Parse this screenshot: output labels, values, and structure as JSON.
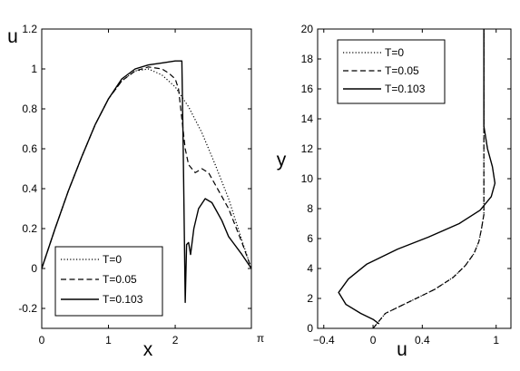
{
  "chart_data": [
    {
      "type": "line",
      "xlabel": "x",
      "ylabel": "u",
      "xlim": [
        0,
        3.14159
      ],
      "ylim": [
        -0.3,
        1.2
      ],
      "xticks": [
        {
          "v": 0,
          "label": "0"
        },
        {
          "v": 1,
          "label": "1"
        },
        {
          "v": 2,
          "label": "2"
        },
        {
          "v": 3.14159,
          "label": "π"
        }
      ],
      "yticks": [
        {
          "v": -0.2,
          "label": "-0.2"
        },
        {
          "v": 0,
          "label": "0"
        },
        {
          "v": 0.2,
          "label": "0.2"
        },
        {
          "v": 0.4,
          "label": "0.4"
        },
        {
          "v": 0.6,
          "label": "0.6"
        },
        {
          "v": 0.8,
          "label": "0.8"
        },
        {
          "v": 1,
          "label": "1"
        },
        {
          "v": 1.2,
          "label": "1.2"
        }
      ],
      "legend": "bottom-left",
      "grid": false,
      "series": [
        {
          "name": "T=0",
          "style": "dotted",
          "x": [
            0,
            0.2,
            0.4,
            0.6,
            0.8,
            1.0,
            1.2,
            1.4,
            1.6,
            1.8,
            2.0,
            2.2,
            2.4,
            2.6,
            2.8,
            3.0,
            3.14159
          ],
          "y": [
            0,
            0.2,
            0.39,
            0.56,
            0.72,
            0.85,
            0.94,
            0.99,
            1.0,
            0.97,
            0.91,
            0.81,
            0.68,
            0.52,
            0.35,
            0.14,
            0
          ]
        },
        {
          "name": "T=0.05",
          "style": "dashed",
          "x": [
            0,
            0.2,
            0.4,
            0.6,
            0.8,
            1.0,
            1.2,
            1.4,
            1.6,
            1.8,
            1.9,
            2.0,
            2.05,
            2.1,
            2.15,
            2.2,
            2.3,
            2.4,
            2.5,
            2.6,
            2.8,
            3.0,
            3.14159
          ],
          "y": [
            0,
            0.2,
            0.39,
            0.56,
            0.72,
            0.85,
            0.94,
            0.99,
            1.01,
            1.0,
            0.98,
            0.95,
            0.9,
            0.75,
            0.6,
            0.52,
            0.48,
            0.5,
            0.48,
            0.42,
            0.3,
            0.13,
            0
          ]
        },
        {
          "name": "T=0.103",
          "style": "solid",
          "x": [
            0,
            0.2,
            0.4,
            0.6,
            0.8,
            1.0,
            1.2,
            1.4,
            1.6,
            1.8,
            2.0,
            2.1,
            2.12,
            2.15,
            2.17,
            2.2,
            2.23,
            2.28,
            2.35,
            2.45,
            2.55,
            2.6,
            2.7,
            2.8,
            3.0,
            3.14159
          ],
          "y": [
            0,
            0.2,
            0.39,
            0.56,
            0.72,
            0.85,
            0.95,
            1.0,
            1.02,
            1.03,
            1.04,
            1.04,
            0.6,
            -0.17,
            0.12,
            0.13,
            0.07,
            0.2,
            0.3,
            0.35,
            0.33,
            0.3,
            0.24,
            0.16,
            0.07,
            0
          ]
        }
      ]
    },
    {
      "type": "line",
      "xlabel": "u",
      "ylabel": "y",
      "xlim": [
        -0.45,
        1.12
      ],
      "ylim": [
        0,
        20
      ],
      "xticks": [
        {
          "v": -0.4,
          "label": "−0.4"
        },
        {
          "v": 0,
          "label": "0"
        },
        {
          "v": 0.4,
          "label": "0.4"
        },
        {
          "v": 1,
          "label": "1"
        }
      ],
      "yticks": [
        {
          "v": 0,
          "label": "0"
        },
        {
          "v": 2,
          "label": "2"
        },
        {
          "v": 4,
          "label": "4"
        },
        {
          "v": 6,
          "label": "6"
        },
        {
          "v": 8,
          "label": "8"
        },
        {
          "v": 10,
          "label": "10"
        },
        {
          "v": 12,
          "label": "12"
        },
        {
          "v": 14,
          "label": "14"
        },
        {
          "v": 16,
          "label": "16"
        },
        {
          "v": 18,
          "label": "18"
        },
        {
          "v": 20,
          "label": "20"
        }
      ],
      "legend": "top-left",
      "grid": false,
      "series": [
        {
          "name": "T=0",
          "style": "dotted",
          "x": [
            0,
            0.1,
            0.3,
            0.5,
            0.65,
            0.75,
            0.82,
            0.86,
            0.88,
            0.9,
            0.9
          ],
          "y": [
            0,
            1,
            1.8,
            2.6,
            3.4,
            4.2,
            5.0,
            5.8,
            6.6,
            7.6,
            20
          ]
        },
        {
          "name": "T=0.05",
          "style": "dashed",
          "x": [
            0,
            0.1,
            0.3,
            0.5,
            0.65,
            0.75,
            0.82,
            0.86,
            0.88,
            0.9,
            0.9
          ],
          "y": [
            0,
            1,
            1.8,
            2.6,
            3.4,
            4.2,
            5.0,
            5.8,
            6.6,
            7.6,
            20
          ]
        },
        {
          "name": "T=0.103",
          "style": "solid",
          "x": [
            0.05,
            0,
            -0.1,
            -0.22,
            -0.28,
            -0.2,
            -0.05,
            0.2,
            0.45,
            0.7,
            0.87,
            0.96,
            0.99,
            0.97,
            0.93,
            0.9,
            0.9
          ],
          "y": [
            0.3,
            0.6,
            1.0,
            1.6,
            2.4,
            3.3,
            4.3,
            5.3,
            6.1,
            7.0,
            7.9,
            8.8,
            9.7,
            10.8,
            12.0,
            13.5,
            20
          ]
        }
      ]
    }
  ]
}
